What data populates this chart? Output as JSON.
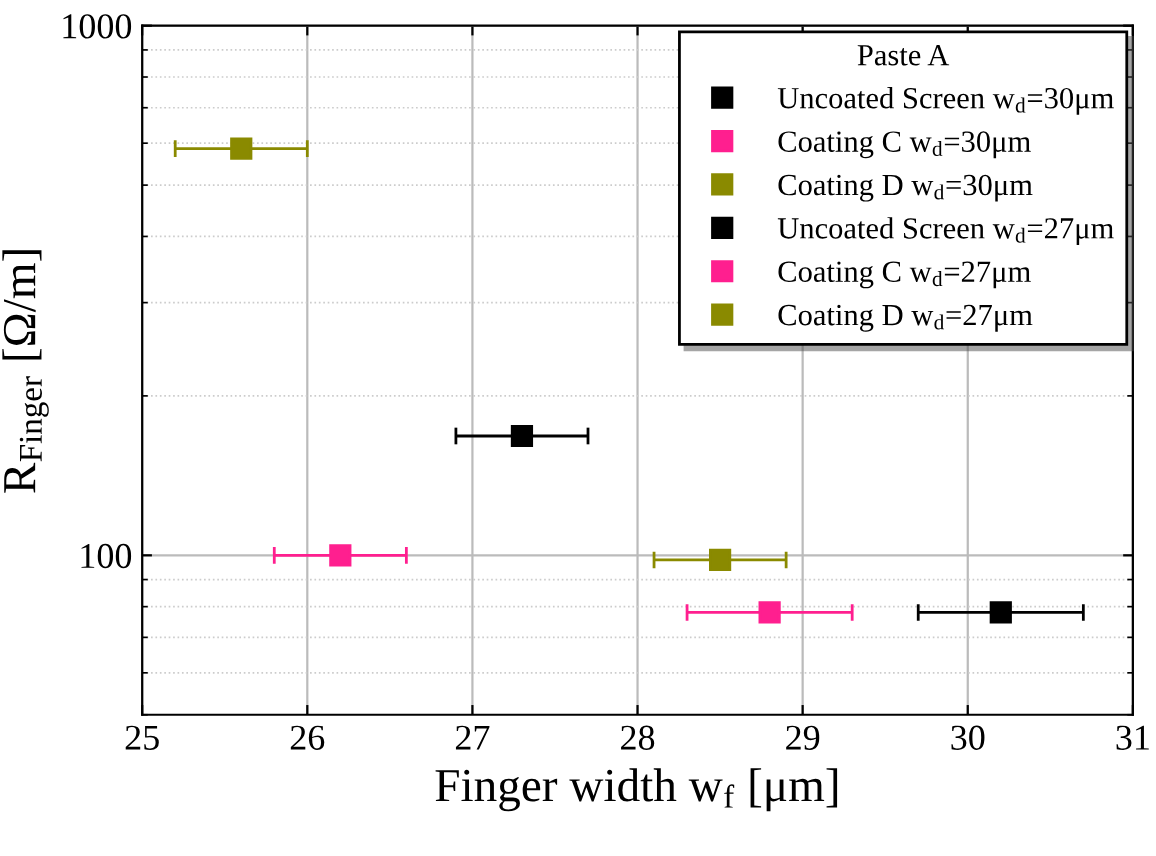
{
  "chart_data": {
    "type": "scatter",
    "xlabel": "Finger width w$_{f}$ [μm]",
    "ylabel": "R$_{Finger}$ [Ω/m]",
    "legend_title": "Paste A",
    "xlim": [
      25,
      31
    ],
    "xticks": [
      25,
      26,
      27,
      28,
      29,
      30,
      31
    ],
    "ylim": [
      50,
      1000
    ],
    "yticks": [
      100,
      1000
    ],
    "log": "y",
    "grid": true,
    "legend": "top right",
    "marker": "square",
    "series": [
      {
        "name": "Uncoated Screen w$_{d}$=30μm",
        "color": "#000000",
        "x": [
          30.2
        ],
        "values": [
          78
        ],
        "xerrors": [
          0.5
        ]
      },
      {
        "name": "Coating C w$_{d}$=30μm",
        "color": "#ff1f8f",
        "x": [
          28.8
        ],
        "values": [
          78
        ],
        "xerrors": [
          0.5
        ]
      },
      {
        "name": "Coating D w$_{d}$=30μm",
        "color": "#8a8a00",
        "x": [
          28.5
        ],
        "values": [
          98
        ],
        "xerrors": [
          0.4
        ]
      },
      {
        "name": "Uncoated Screen w$_{d}$=27μm",
        "color": "#000000",
        "x": [
          27.3
        ],
        "values": [
          168
        ],
        "xerrors": [
          0.4
        ]
      },
      {
        "name": "Coating C w$_{d}$=27μm",
        "color": "#ff1f8f",
        "x": [
          26.2
        ],
        "values": [
          100
        ],
        "xerrors": [
          0.4
        ]
      },
      {
        "name": "Coating D w$_{d}$=27μm",
        "color": "#8a8a00",
        "x": [
          25.6
        ],
        "values": [
          586
        ],
        "xerrors": [
          0.4
        ]
      }
    ]
  }
}
